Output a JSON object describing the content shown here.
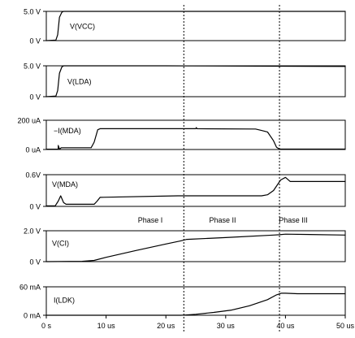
{
  "chart_data": [
    {
      "type": "line",
      "series": [
        {
          "name": "V(VCC)",
          "x": [
            0,
            1.6,
            1.9,
            2.2,
            2.6,
            2.9,
            50
          ],
          "y": [
            0,
            0.1,
            1.0,
            4.0,
            4.85,
            5.0,
            5.0
          ]
        }
      ],
      "yticks": [
        "5.0 V",
        "0 V"
      ],
      "ylim": [
        0,
        5
      ],
      "xlim": [
        0,
        50
      ]
    },
    {
      "type": "line",
      "series": [
        {
          "name": "V(LDA)",
          "x": [
            0,
            1.6,
            1.9,
            2.2,
            2.6,
            2.9,
            20,
            50
          ],
          "y": [
            0,
            0.1,
            1.0,
            3.8,
            4.8,
            5.0,
            5.0,
            4.9
          ]
        }
      ],
      "yticks": [
        "5.0 V",
        "0 V"
      ],
      "ylim": [
        0,
        5
      ],
      "xlim": [
        0,
        50
      ]
    },
    {
      "type": "line",
      "series": [
        {
          "name": "−I(MDA)",
          "x": [
            0,
            2.0,
            2.0,
            2.2,
            2.5,
            7.5,
            8.0,
            8.6,
            9.0,
            25,
            25.1,
            25.2,
            35,
            36,
            37,
            38,
            38.5,
            39,
            50
          ],
          "y": [
            2,
            2,
            28,
            2,
            12,
            12,
            50,
            135,
            142,
            142,
            150,
            142,
            140,
            130,
            120,
            60,
            15,
            3,
            3
          ]
        }
      ],
      "yticks": [
        "200 uA",
        "0 uA"
      ],
      "ylim": [
        0,
        200
      ],
      "xlim": [
        0,
        50
      ]
    },
    {
      "type": "line",
      "series": [
        {
          "name": "V(MDA)",
          "x": [
            0,
            1.5,
            2.0,
            2.4,
            2.9,
            3.3,
            8.0,
            8.5,
            9.0,
            22,
            36,
            37,
            38,
            38.6,
            39.2,
            40,
            40.8,
            50
          ],
          "y": [
            0.01,
            0.01,
            0.1,
            0.2,
            0.07,
            0.04,
            0.04,
            0.1,
            0.17,
            0.2,
            0.2,
            0.22,
            0.3,
            0.4,
            0.5,
            0.55,
            0.47,
            0.47
          ]
        }
      ],
      "yticks": [
        "0.6V",
        "0 V"
      ],
      "ylim": [
        0,
        0.6
      ],
      "xlim": [
        0,
        50
      ]
    },
    {
      "type": "line",
      "series": [
        {
          "name": "V(CI)",
          "x": [
            0,
            6,
            8,
            10,
            15,
            20,
            22.5,
            23.5,
            30,
            38,
            39,
            40,
            50
          ],
          "y": [
            0,
            0.02,
            0.08,
            0.28,
            0.72,
            1.14,
            1.35,
            1.44,
            1.56,
            1.72,
            1.74,
            1.78,
            1.72
          ]
        }
      ],
      "yticks": [
        "2.0 V",
        "0 V"
      ],
      "ylim": [
        0,
        2
      ],
      "xlim": [
        0,
        50
      ]
    },
    {
      "type": "line",
      "series": [
        {
          "name": "I(LDK)",
          "x": [
            0,
            22.5,
            23,
            25,
            28,
            31,
            34,
            37,
            38.5,
            39.3,
            40,
            42,
            50
          ],
          "y": [
            0,
            0,
            0.3,
            2,
            6,
            11,
            20,
            33,
            43,
            46.5,
            46.5,
            45.5,
            45.5
          ]
        }
      ],
      "yticks": [
        "60 mA",
        "0 mA"
      ],
      "ylim": [
        0,
        60
      ],
      "xlim": [
        0,
        50
      ]
    }
  ],
  "xticks": [
    "0 s",
    "10 us",
    "20 us",
    "30 us",
    "40 us",
    "50 us"
  ],
  "xtick_values": [
    0,
    10,
    20,
    30,
    40,
    50
  ],
  "phase_dividers": [
    23,
    39
  ],
  "phases": [
    "Phase I",
    "Phase II",
    "Phase III"
  ]
}
